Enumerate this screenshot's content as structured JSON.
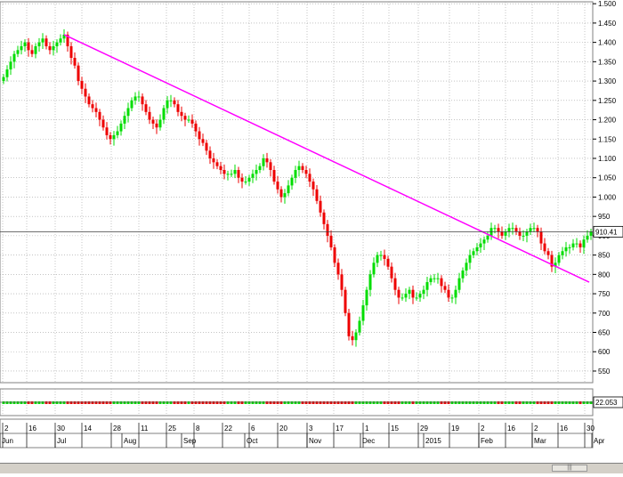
{
  "chart_data": {
    "type": "candlestick",
    "price_axis": {
      "ticks": [
        "1.500",
        "1.450",
        "1.400",
        "1.350",
        "1.300",
        "1.250",
        "1.200",
        "1.150",
        "1.100",
        "1.050",
        "1.000",
        "950",
        "900",
        "850",
        "800",
        "750",
        "700",
        "650",
        "600",
        "550"
      ],
      "range": [
        520,
        1505
      ]
    },
    "last_price_label": "910.41",
    "last_price": 910.41,
    "volume_label": "22.053",
    "time_axis": {
      "day_ticks": [
        "2",
        "16",
        "30",
        "14",
        "28",
        "11",
        "25",
        "8",
        "22",
        "6",
        "20",
        "3",
        "17",
        "1",
        "15",
        "29",
        "19",
        "2",
        "16",
        "2",
        "16",
        "30"
      ],
      "month_labels": [
        "Jun",
        "Jul",
        "Aug",
        "Sep",
        "Oct",
        "Nov",
        "Dec",
        "2015",
        "Feb",
        "Mar",
        "Apr"
      ]
    },
    "trendline": {
      "color": "#ff00ff",
      "from_close": 1420,
      "to_close": 780
    },
    "colors": {
      "up": "#00dd00",
      "down": "#ee0000",
      "grid": "#a0a0a0",
      "trendline": "#ff00ff"
    },
    "closes": [
      1310,
      1330,
      1350,
      1370,
      1380,
      1390,
      1400,
      1380,
      1370,
      1390,
      1400,
      1410,
      1390,
      1380,
      1390,
      1400,
      1410,
      1420,
      1390,
      1360,
      1340,
      1300,
      1280,
      1260,
      1240,
      1230,
      1220,
      1200,
      1180,
      1160,
      1150,
      1160,
      1170,
      1190,
      1210,
      1230,
      1250,
      1260,
      1260,
      1240,
      1220,
      1200,
      1190,
      1180,
      1200,
      1230,
      1250,
      1250,
      1240,
      1220,
      1210,
      1200,
      1200,
      1190,
      1170,
      1150,
      1140,
      1120,
      1100,
      1090,
      1080,
      1070,
      1060,
      1060,
      1060,
      1070,
      1050,
      1040,
      1040,
      1050,
      1060,
      1070,
      1080,
      1100,
      1090,
      1070,
      1040,
      1020,
      1000,
      1010,
      1030,
      1050,
      1070,
      1080,
      1070,
      1060,
      1040,
      1020,
      990,
      960,
      930,
      900,
      870,
      830,
      800,
      760,
      700,
      640,
      630,
      650,
      680,
      720,
      760,
      800,
      830,
      850,
      850,
      840,
      820,
      790,
      760,
      740,
      740,
      750,
      760,
      740,
      740,
      750,
      760,
      780,
      790,
      790,
      790,
      770,
      760,
      740,
      740,
      760,
      790,
      810,
      830,
      850,
      860,
      870,
      880,
      890,
      900,
      920,
      920,
      910,
      900,
      910,
      920,
      920,
      910,
      900,
      900,
      910,
      920,
      920,
      910,
      880,
      860,
      850,
      820,
      830,
      850,
      860,
      870,
      870,
      880,
      880,
      870,
      890,
      900,
      910
    ]
  }
}
